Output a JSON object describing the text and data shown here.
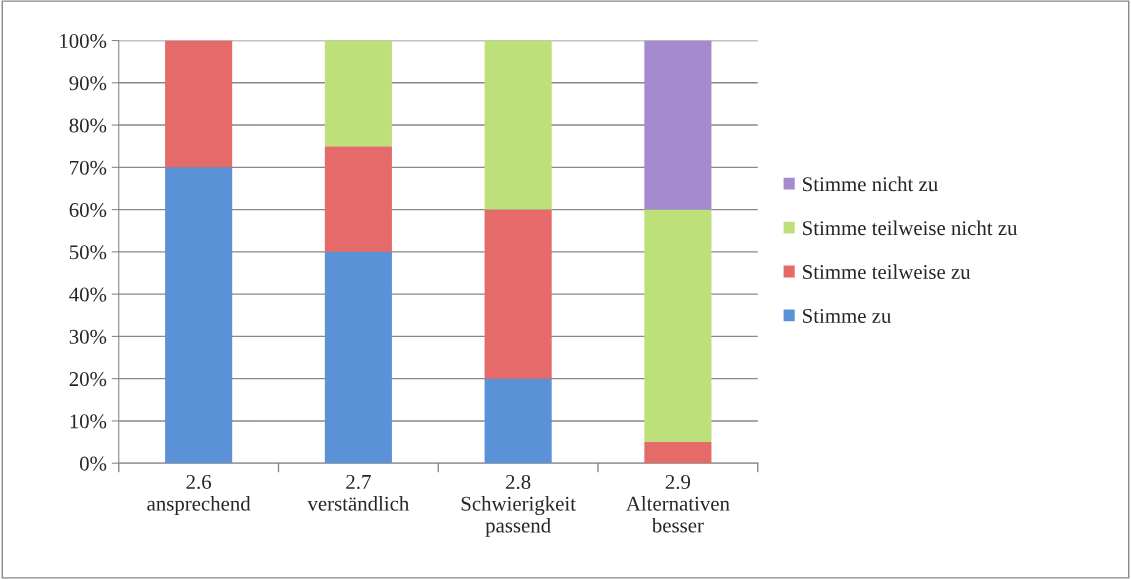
{
  "chart_data": {
    "type": "bar",
    "stacked": true,
    "categories": [
      "2.6\nansprechend",
      "2.7\nverständlich",
      "2.8\nSchwierigkeit\npassend",
      "2.9\nAlternativen\nbesser"
    ],
    "series": [
      {
        "name": "Stimme zu",
        "color": "#5b91d6",
        "values": [
          70,
          50,
          20,
          0
        ]
      },
      {
        "name": "Stimme teilweise zu",
        "color": "#e56a6a",
        "values": [
          30,
          25,
          40,
          5
        ]
      },
      {
        "name": "Stimme teilweise nicht zu",
        "color": "#bde07a",
        "values": [
          0,
          25,
          40,
          55
        ]
      },
      {
        "name": "Stimme nicht zu",
        "color": "#a58ad0",
        "values": [
          0,
          0,
          0,
          40
        ]
      }
    ],
    "ylim": [
      0,
      100
    ],
    "yticks": [
      {
        "value": 0,
        "label": "0%"
      },
      {
        "value": 10,
        "label": "10%"
      },
      {
        "value": 20,
        "label": "20%"
      },
      {
        "value": 30,
        "label": "30%"
      },
      {
        "value": 40,
        "label": "40%"
      },
      {
        "value": 50,
        "label": "50%"
      },
      {
        "value": 60,
        "label": "60%"
      },
      {
        "value": 70,
        "label": "70%"
      },
      {
        "value": 80,
        "label": "80%"
      },
      {
        "value": 90,
        "label": "90%"
      },
      {
        "value": 100,
        "label": "100%"
      }
    ],
    "grid": "y",
    "legend": "right"
  }
}
